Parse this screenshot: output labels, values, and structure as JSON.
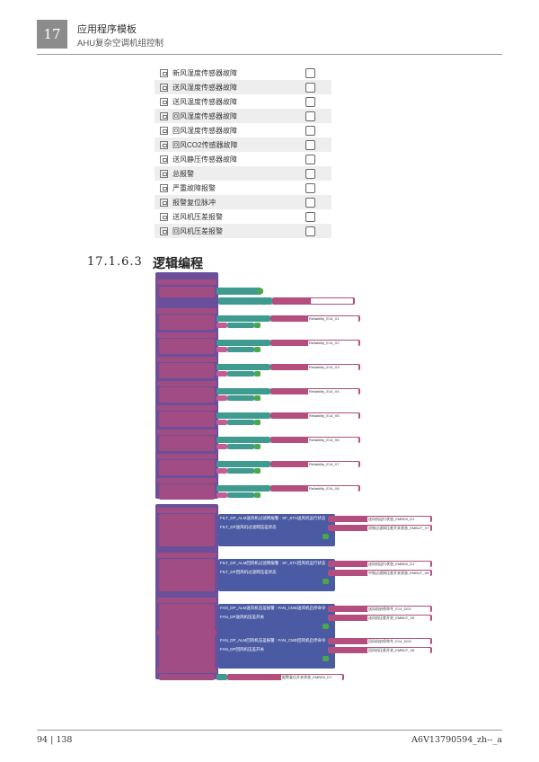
{
  "header": {
    "chapter": "17",
    "title": "应用程序模板",
    "subtitle": "AHU复杂空调机组控制"
  },
  "alarm_list": {
    "items": [
      "新风湿度传感器故障",
      "送风湿度传感器故障",
      "送风温度传感器故障",
      "回风湿度传感器故障",
      "回风湿度传感器故障",
      "回风CO2传感器故障",
      "送风静压传感器故障",
      "总报警",
      "严重故障报警",
      "报警复位脉冲",
      "送风机压差报警",
      "回风机压差报警"
    ]
  },
  "section": {
    "number": "17.1.6.3",
    "title": "逻辑编程"
  },
  "logic": {
    "reliability_fields": [
      "Reliability_E14_X1",
      "Reliability_E14_X2",
      "Reliability_E14_X3",
      "Reliability_E14_X4",
      "Reliability_E14_X5",
      "Reliability_E14_X6",
      "Reliability_E14_X7",
      "Reliability_E14_X8"
    ],
    "fault_rows": [
      {
        "expr": "FILT_DP_ALM送风机过滤网报警 : SF_STA送风机运行状态",
        "field": "送风机运行状态_EMBD0_D1"
      },
      {
        "expr": "FILT_DP送风机过滤网压差状态",
        "field": "初效过滤网压差开关状态_EMBUT_X7"
      },
      {
        "expr": "FILT_DP_ALM回风机过滤网报警 : SF_STA回风机运行状态",
        "field": "送风机运行状态_EMBD0_D1"
      },
      {
        "expr": "FILT_DP回风机过滤网压差状态",
        "field": "中效过滤网压差开关状态_EMBUT_X8"
      },
      {
        "expr": "FAN_DP_ALM送风机压差报警 : FAN_CMD送风机启停命令",
        "field": "送风机启停命令_E14_DO1"
      },
      {
        "expr": "FAN_DP送风机压差开关",
        "field": "送风机压差开关_EMBUT_X5"
      },
      {
        "expr": "FAN_DP_ALM回风机压差报警 : FAN_CMD回风机启停命令",
        "field": "回风机启停命令_E14_DO2"
      },
      {
        "expr": "FAN_DP回风机压差开关",
        "field": "回风机压差开关_EMBUT_X6"
      }
    ],
    "last_field": "报警复位开关状态_EMBD0_D7"
  },
  "footer": {
    "page": "94 | 138",
    "doc_id": "A6V13790594_zh--_a"
  },
  "colors": {
    "purple": "#6a4f9b",
    "magenta": "#a24c84",
    "teal": "#3f9a8f",
    "pink": "#c75b95",
    "navy": "#4a5aa3",
    "green": "#4aa84a"
  }
}
